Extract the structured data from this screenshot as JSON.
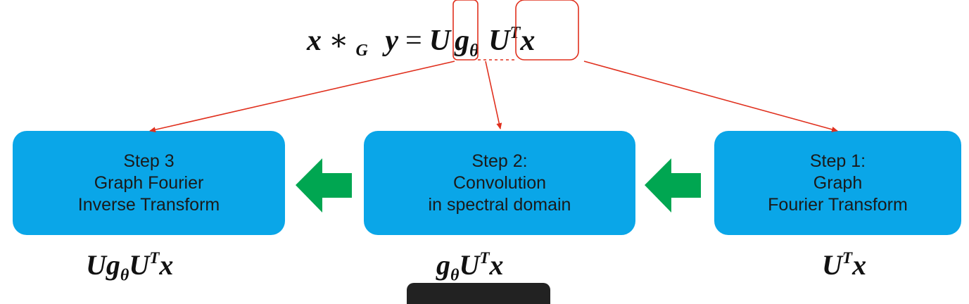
{
  "formula": {
    "lhs_x": "x",
    "op_star": "∗",
    "sub_g": "G",
    "lhs_y": "y",
    "equals": "=",
    "term_u": "U",
    "term_g": "g",
    "sub_theta": "θ",
    "term_ut": "U",
    "sup_t": "T",
    "term_x": "x"
  },
  "steps": [
    {
      "line1": "Step 3",
      "line2": "Graph Fourier",
      "line3": "Inverse Transform"
    },
    {
      "line1": "Step 2:",
      "line2": "Convolution",
      "line3": "in spectral domain"
    },
    {
      "line1": "Step 1:",
      "line2": "Graph",
      "line3": "Fourier Transform"
    }
  ],
  "results": {
    "step3": {
      "u": "U",
      "g": "g",
      "theta": "θ",
      "ut": "U",
      "t": "T",
      "x": "x"
    },
    "step2": {
      "g": "g",
      "theta": "θ",
      "ut": "U",
      "t": "T",
      "x": "x"
    },
    "step1": {
      "ut": "U",
      "t": "T",
      "x": "x"
    }
  },
  "colors": {
    "box_fill": "#0aa6e8",
    "flow_arrow": "#00a651",
    "highlight": "#e0301e"
  }
}
